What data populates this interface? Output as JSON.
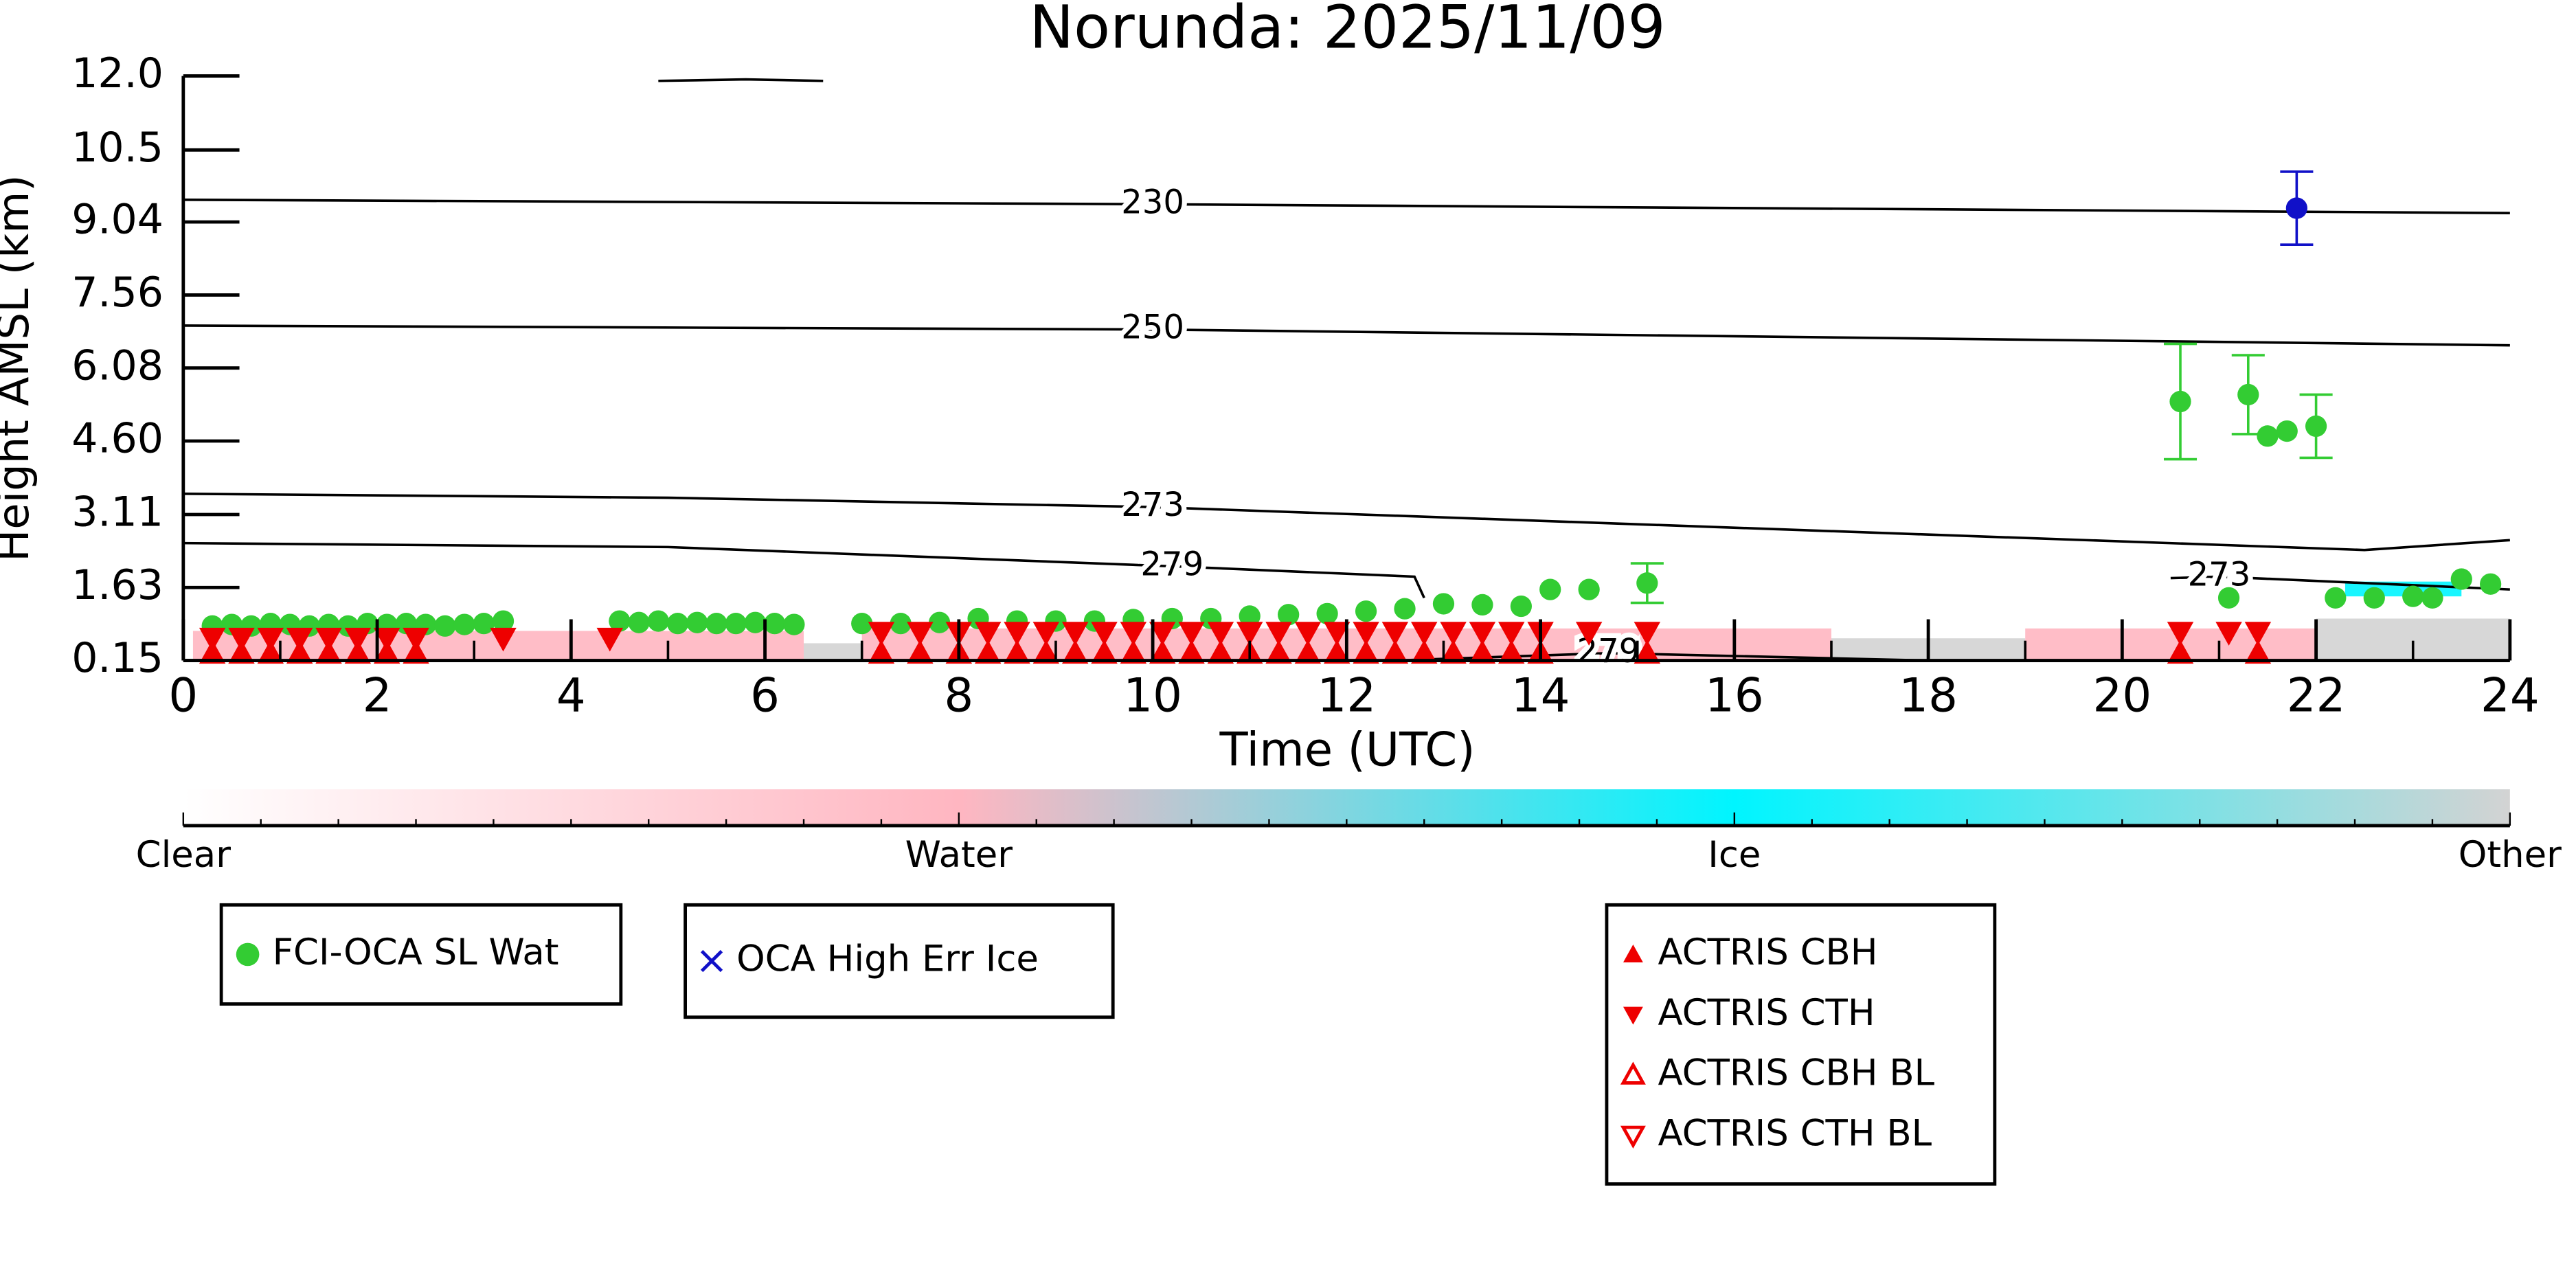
{
  "chart_data": {
    "type": "scatter",
    "title": "Norunda: 2025/11/09",
    "ylabel": "Height AMSL (km)",
    "xlabel": "Time (UTC)",
    "xlim": [
      0,
      24
    ],
    "xticks": [
      0,
      2,
      4,
      6,
      8,
      10,
      12,
      14,
      16,
      18,
      20,
      22,
      24
    ],
    "xminorticks": [
      1,
      3,
      5,
      7,
      9,
      11,
      13,
      15,
      17,
      19,
      21,
      23
    ],
    "ylim": [
      0.15,
      12.0
    ],
    "yticks": [
      0.15,
      1.63,
      3.11,
      {
        "value": 4.6,
        "label": "4.60"
      },
      6.08,
      7.56,
      9.04,
      10.5,
      {
        "value": 12.0,
        "label": "12.0"
      }
    ],
    "colorbar": {
      "labels": [
        "Clear",
        "Water",
        "Ice",
        "Other"
      ],
      "colors": [
        "#ffffff",
        "#ffb6c1",
        "#00f5ff",
        "#d3d3d3"
      ]
    },
    "classification": [
      {
        "x": [
          0.1,
          6.4
        ],
        "y": [
          0.15,
          0.75
        ],
        "class": 1
      },
      {
        "x": [
          6.4,
          7.0
        ],
        "y": [
          0.15,
          0.5
        ],
        "class": 3
      },
      {
        "x": [
          7.0,
          17.0
        ],
        "y": [
          0.15,
          0.8
        ],
        "class": 1
      },
      {
        "x": [
          17.0,
          19.0
        ],
        "y": [
          0.15,
          0.6
        ],
        "class": 3
      },
      {
        "x": [
          19.0,
          22.0
        ],
        "y": [
          0.15,
          0.8
        ],
        "class": 1
      },
      {
        "x": [
          22.0,
          24.0
        ],
        "y": [
          0.15,
          1.0
        ],
        "class": 3
      },
      {
        "x": [
          22.3,
          23.5
        ],
        "y": [
          1.45,
          1.75
        ],
        "class": 2
      }
    ],
    "contours": [
      {
        "level": 230,
        "x": [
          0,
          10,
          24
        ],
        "y": [
          9.49,
          9.4,
          9.22
        ]
      },
      {
        "level": 250,
        "x": [
          0,
          10,
          24
        ],
        "y": [
          6.94,
          6.86,
          6.54
        ]
      },
      {
        "level": 273,
        "x": [
          0,
          5,
          10,
          22.5,
          24
        ],
        "y": [
          3.53,
          3.45,
          3.26,
          2.39,
          2.59
        ]
      },
      {
        "level": 279,
        "x": [
          0,
          5,
          10.2,
          12.7,
          12.8
        ],
        "y": [
          2.53,
          2.45,
          2.06,
          1.85,
          1.42
        ]
      },
      {
        "level": 273,
        "x": [
          20.5,
          21,
          24
        ],
        "y": [
          1.82,
          1.85,
          1.59
        ]
      },
      {
        "level": 279,
        "x": [
          12.5,
          14.7,
          18
        ],
        "y": [
          0.15,
          0.3,
          0.15
        ]
      },
      {
        "x": [
          4.9,
          5.8,
          6.6
        ],
        "y": [
          11.9,
          11.93,
          11.9
        ]
      }
    ],
    "series": [
      {
        "name": "FCI-OCA SL Wat",
        "color": "#33cc33",
        "marker": "circle",
        "x": [
          0.3,
          0.5,
          0.7,
          0.9,
          1.1,
          1.3,
          1.5,
          1.7,
          1.9,
          2.1,
          2.3,
          2.5,
          2.7,
          2.9,
          3.1,
          3.3,
          4.5,
          4.7,
          4.9,
          5.1,
          5.3,
          5.5,
          5.7,
          5.9,
          6.1,
          6.3,
          7.0,
          7.4,
          7.8,
          8.2,
          8.6,
          9.0,
          9.4,
          9.8,
          10.2,
          10.6,
          11.0,
          11.4,
          11.8,
          12.2,
          12.6,
          13.0,
          13.4,
          13.8,
          14.1,
          14.5,
          15.1,
          20.6,
          21.1,
          21.3,
          21.5,
          21.7,
          22.0,
          22.2,
          22.6,
          23.0,
          23.2,
          23.5,
          23.8
        ],
        "values": [
          0.85,
          0.88,
          0.85,
          0.9,
          0.88,
          0.85,
          0.88,
          0.85,
          0.9,
          0.88,
          0.9,
          0.88,
          0.85,
          0.88,
          0.9,
          0.95,
          0.95,
          0.92,
          0.95,
          0.9,
          0.92,
          0.9,
          0.9,
          0.92,
          0.9,
          0.88,
          0.9,
          0.9,
          0.92,
          1.0,
          0.95,
          0.95,
          0.95,
          0.98,
          1.0,
          1.0,
          1.05,
          1.08,
          1.1,
          1.15,
          1.2,
          1.3,
          1.28,
          1.25,
          1.59,
          1.59,
          1.72,
          5.4,
          1.42,
          5.54,
          4.7,
          4.8,
          4.9,
          1.42,
          1.42,
          1.45,
          1.42,
          1.8,
          1.7
        ],
        "errors": [
          null,
          null,
          null,
          null,
          null,
          null,
          null,
          null,
          null,
          null,
          null,
          null,
          null,
          null,
          null,
          null,
          null,
          null,
          null,
          null,
          null,
          null,
          null,
          null,
          null,
          null,
          null,
          null,
          null,
          null,
          null,
          null,
          null,
          null,
          null,
          null,
          null,
          null,
          null,
          null,
          null,
          null,
          null,
          null,
          null,
          null,
          0.4,
          1.17,
          null,
          0.8,
          null,
          null,
          0.64,
          null,
          null,
          null,
          null,
          null,
          null
        ]
      },
      {
        "name": "OCA High Err Ice",
        "color": "#1010c8",
        "marker": "x",
        "x": [
          21.8
        ],
        "values": [
          9.32
        ],
        "errors": [
          0.74
        ]
      },
      {
        "name": "ACTRIS CBH",
        "color": "#ee0000",
        "marker": "triangle-up",
        "x": [
          0.3,
          0.6,
          0.9,
          1.2,
          1.5,
          1.8,
          2.1,
          2.4,
          7.2,
          7.6,
          8.0,
          8.3,
          8.6,
          8.9,
          9.2,
          9.5,
          9.8,
          10.1,
          10.4,
          10.7,
          11.0,
          11.3,
          11.6,
          11.9,
          12.2,
          12.5,
          12.8,
          13.1,
          13.4,
          13.7,
          14.0,
          15.1,
          20.6,
          21.4
        ],
        "values": [
          0.3,
          0.3,
          0.3,
          0.3,
          0.3,
          0.3,
          0.3,
          0.3,
          0.3,
          0.3,
          0.3,
          0.3,
          0.3,
          0.3,
          0.3,
          0.3,
          0.3,
          0.3,
          0.3,
          0.3,
          0.3,
          0.3,
          0.3,
          0.3,
          0.3,
          0.3,
          0.3,
          0.3,
          0.3,
          0.3,
          0.3,
          0.3,
          0.3,
          0.3
        ]
      },
      {
        "name": "ACTRIS CTH",
        "color": "#ee0000",
        "marker": "triangle-down",
        "x": [
          0.3,
          0.6,
          0.9,
          1.2,
          1.5,
          1.8,
          2.1,
          2.4,
          3.3,
          4.4,
          7.2,
          7.6,
          8.0,
          8.3,
          8.6,
          8.9,
          9.2,
          9.5,
          9.8,
          10.1,
          10.4,
          10.7,
          11.0,
          11.3,
          11.6,
          11.9,
          12.2,
          12.5,
          12.8,
          13.1,
          13.4,
          13.7,
          14.0,
          14.5,
          15.1,
          20.6,
          21.1,
          21.4
        ],
        "values": [
          0.6,
          0.6,
          0.6,
          0.6,
          0.6,
          0.6,
          0.6,
          0.6,
          0.6,
          0.6,
          0.72,
          0.72,
          0.72,
          0.72,
          0.72,
          0.72,
          0.72,
          0.72,
          0.72,
          0.72,
          0.72,
          0.72,
          0.72,
          0.72,
          0.72,
          0.72,
          0.72,
          0.72,
          0.72,
          0.72,
          0.72,
          0.72,
          0.72,
          0.72,
          0.72,
          0.72,
          0.72,
          0.72
        ]
      },
      {
        "name": "ACTRIS CBH BL",
        "color": "#ee0000",
        "marker": "triangle-up-open",
        "x": [],
        "values": []
      },
      {
        "name": "ACTRIS CTH BL",
        "color": "#ee0000",
        "marker": "triangle-down-open",
        "x": [],
        "values": []
      }
    ]
  }
}
